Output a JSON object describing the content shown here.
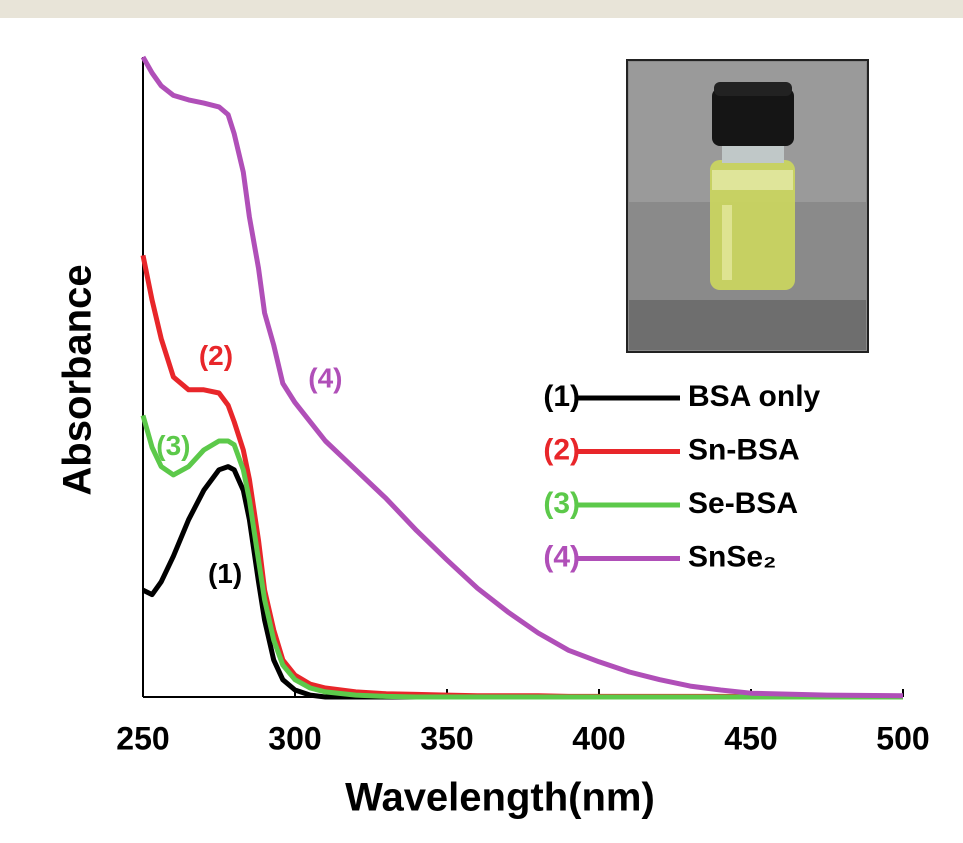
{
  "chart_data": {
    "type": "line",
    "xlabel": "Wavelength(nm)",
    "ylabel": "Absorbance",
    "x": [
      250,
      253,
      256,
      260,
      265,
      270,
      275,
      278,
      280,
      283,
      285,
      288,
      290,
      293,
      296,
      300,
      305,
      310,
      320,
      330,
      340,
      350,
      360,
      370,
      380,
      390,
      400,
      410,
      420,
      430,
      440,
      450,
      475,
      500
    ],
    "series": [
      {
        "name": "BSA only",
        "tag": "(1)",
        "color": "#000000",
        "values": [
          0.167,
          0.16,
          0.18,
          0.22,
          0.277,
          0.323,
          0.355,
          0.36,
          0.355,
          0.323,
          0.277,
          0.18,
          0.12,
          0.058,
          0.027,
          0.011,
          0.003,
          0,
          0,
          0,
          0,
          0,
          0,
          0,
          0,
          0,
          0,
          0,
          0,
          0,
          0,
          0,
          0,
          0
        ]
      },
      {
        "name": "Sn-BSA",
        "tag": "(2)",
        "color": "#e8262a",
        "values": [
          0.69,
          0.62,
          0.56,
          0.5,
          0.48,
          0.48,
          0.475,
          0.456,
          0.43,
          0.386,
          0.34,
          0.245,
          0.167,
          0.105,
          0.058,
          0.034,
          0.02,
          0.014,
          0.008,
          0.005,
          0.004,
          0.003,
          0.002,
          0.002,
          0.002,
          0.001,
          0.001,
          0.001,
          0.001,
          0.001,
          0.001,
          0.001,
          0.001,
          0.001
        ]
      },
      {
        "name": "Se-BSA",
        "tag": "(3)",
        "color": "#5cc94a",
        "values": [
          0.44,
          0.39,
          0.36,
          0.347,
          0.36,
          0.386,
          0.4,
          0.4,
          0.394,
          0.355,
          0.308,
          0.214,
          0.152,
          0.089,
          0.05,
          0.027,
          0.014,
          0.008,
          0.003,
          0.001,
          0,
          0,
          0,
          0,
          0,
          0,
          0,
          0,
          0,
          0,
          0,
          0,
          0,
          0
        ]
      },
      {
        "name": "SnSe₂",
        "tag": "(4)",
        "color": "#b04fb8",
        "values": [
          1.0,
          0.975,
          0.955,
          0.94,
          0.933,
          0.928,
          0.922,
          0.91,
          0.88,
          0.82,
          0.75,
          0.67,
          0.6,
          0.55,
          0.49,
          0.46,
          0.43,
          0.4,
          0.355,
          0.31,
          0.26,
          0.214,
          0.17,
          0.133,
          0.1,
          0.073,
          0.055,
          0.039,
          0.027,
          0.017,
          0.011,
          0.006,
          0.003,
          0.002
        ]
      }
    ],
    "annotations": [
      {
        "text": "(1)",
        "x": 277,
        "y": 0.19
      },
      {
        "text": "(2)",
        "x": 274,
        "y": 0.53
      },
      {
        "text": "(3)",
        "x": 260,
        "y": 0.39
      },
      {
        "text": "(4)",
        "x": 310,
        "y": 0.495
      }
    ],
    "xlim": [
      250,
      500
    ],
    "xticks": [
      250,
      300,
      350,
      400,
      450,
      500
    ],
    "ylim": [
      0,
      1
    ],
    "yticks": []
  }
}
